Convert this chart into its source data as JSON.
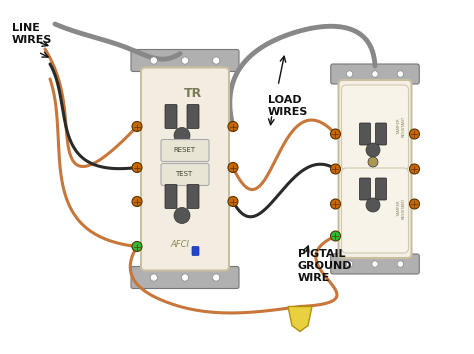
{
  "bg_color": "#ffffff",
  "labels": {
    "line_wires": "LINE\nWIRES",
    "load_wires": "LOAD\nWIRES",
    "pigtail": "PIGTAIL\nGROUND\nWIRE"
  },
  "outlet_color": "#f2ede0",
  "outlet2_color": "#f5f0e5",
  "bracket_color": "#b0b0b0",
  "wire_copper": "#c8763a",
  "wire_gray": "#888888",
  "wire_black": "#2a2a2a",
  "screw_color": "#cc6600",
  "green_screw": "#33bb33",
  "yellow_connector": "#e8d040",
  "font_size": 8
}
